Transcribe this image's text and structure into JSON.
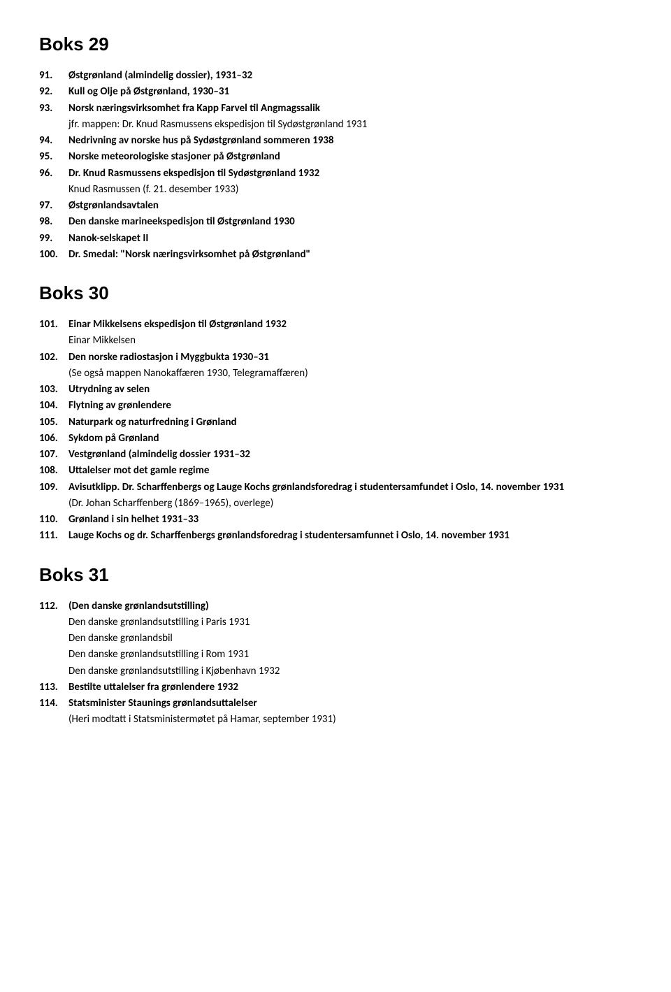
{
  "sections": [
    {
      "title": "Boks 29",
      "items": [
        {
          "num": "91.",
          "lines": [
            {
              "text": "Østgrønland (almindelig dossier), 1931–32",
              "bold": true
            }
          ]
        },
        {
          "num": "92.",
          "lines": [
            {
              "text": "Kull og Olje på Østgrønland, 1930–31",
              "bold": true
            }
          ]
        },
        {
          "num": "93.",
          "lines": [
            {
              "text": "Norsk næringsvirksomhet fra Kapp Farvel til Angmagssalik",
              "bold": true
            },
            {
              "text": "jfr. mappen: Dr. Knud Rasmussens ekspedisjon til Sydøstgrønland 1931",
              "bold": false
            }
          ]
        },
        {
          "num": "94.",
          "lines": [
            {
              "text": "Nedrivning av norske hus på Sydøstgrønland sommeren 1938",
              "bold": true
            }
          ]
        },
        {
          "num": "95.",
          "lines": [
            {
              "text": "Norske meteorologiske stasjoner på Østgrønland",
              "bold": true
            }
          ]
        },
        {
          "num": "96.",
          "lines": [
            {
              "text": "Dr. Knud Rasmussens ekspedisjon til Sydøstgrønland 1932",
              "bold": true
            },
            {
              "text": "Knud Rasmussen (f. 21. desember 1933)",
              "bold": false
            }
          ]
        },
        {
          "num": "97.",
          "lines": [
            {
              "text": "Østgrønlandsavtalen",
              "bold": true
            }
          ]
        },
        {
          "num": "98.",
          "lines": [
            {
              "text": "Den danske marineekspedisjon til Østgrønland 1930",
              "bold": true
            }
          ]
        },
        {
          "num": "99.",
          "lines": [
            {
              "text": "Nanok-selskapet II",
              "bold": true
            }
          ]
        },
        {
          "num": "100.",
          "lines": [
            {
              "text": "Dr. Smedal: \"Norsk næringsvirksomhet på Østgrønland\"",
              "bold": true
            }
          ]
        }
      ]
    },
    {
      "title": "Boks 30",
      "items": [
        {
          "num": "101.",
          "lines": [
            {
              "text": "Einar Mikkelsens ekspedisjon til Østgrønland 1932",
              "bold": true
            },
            {
              "text": "Einar Mikkelsen",
              "bold": false
            }
          ]
        },
        {
          "num": "102.",
          "lines": [
            {
              "text": "Den norske radiostasjon i Myggbukta 1930–31",
              "bold": true
            },
            {
              "text": "(Se også mappen Nanokaffæren 1930, Telegramaffæren)",
              "bold": false
            }
          ]
        },
        {
          "num": "103.",
          "lines": [
            {
              "text": "Utrydning av selen",
              "bold": true
            }
          ]
        },
        {
          "num": "104.",
          "lines": [
            {
              "text": "Flytning av grønlendere",
              "bold": true
            }
          ]
        },
        {
          "num": "105.",
          "lines": [
            {
              "text": "Naturpark og naturfredning i Grønland",
              "bold": true
            }
          ]
        },
        {
          "num": "106.",
          "lines": [
            {
              "text": "Sykdom på Grønland",
              "bold": true
            }
          ]
        },
        {
          "num": "107.",
          "lines": [
            {
              "text": "Vestgrønland (almindelig dossier 1931–32",
              "bold": true
            }
          ]
        },
        {
          "num": "108.",
          "lines": [
            {
              "text": "Uttalelser mot det gamle regime",
              "bold": true
            }
          ]
        },
        {
          "num": "109.",
          "lines": [
            {
              "text": "Avisutklipp. Dr. Scharffenbergs og Lauge Kochs grønlandsforedrag i studentersamfundet i Oslo, 14. november 1931",
              "bold": true
            },
            {
              "text": "(Dr. Johan Scharffenberg (1869–1965), overlege)",
              "bold": false
            }
          ]
        },
        {
          "num": "110.",
          "lines": [
            {
              "text": "Grønland i sin helhet 1931–33",
              "bold": true
            }
          ]
        },
        {
          "num": "111.",
          "lines": [
            {
              "text": "Lauge Kochs og dr. Scharffenbergs grønlandsforedrag i studentersamfunnet i Oslo, 14. november 1931",
              "bold": true
            }
          ]
        }
      ]
    },
    {
      "title": "Boks 31",
      "items": [
        {
          "num": "112.",
          "lines": [
            {
              "text": "(Den danske grønlandsutstilling)",
              "bold": true
            },
            {
              "text": "Den danske grønlandsutstilling i Paris 1931",
              "bold": false
            },
            {
              "text": "Den danske grønlandsbil",
              "bold": false
            },
            {
              "text": "Den danske grønlandsutstilling i Rom 1931",
              "bold": false
            },
            {
              "text": "Den danske grønlandsutstilling i Kjøbenhavn 1932",
              "bold": false
            }
          ]
        },
        {
          "num": "113.",
          "lines": [
            {
              "text": "Bestilte uttalelser fra grønlendere 1932",
              "bold": true
            }
          ]
        },
        {
          "num": "114.",
          "lines": [
            {
              "text": "Statsminister Staunings grønlandsuttalelser",
              "bold": true
            },
            {
              "text": "(Heri modtatt i Statsministermøtet på Hamar, september 1931)",
              "bold": false
            }
          ]
        }
      ]
    }
  ]
}
